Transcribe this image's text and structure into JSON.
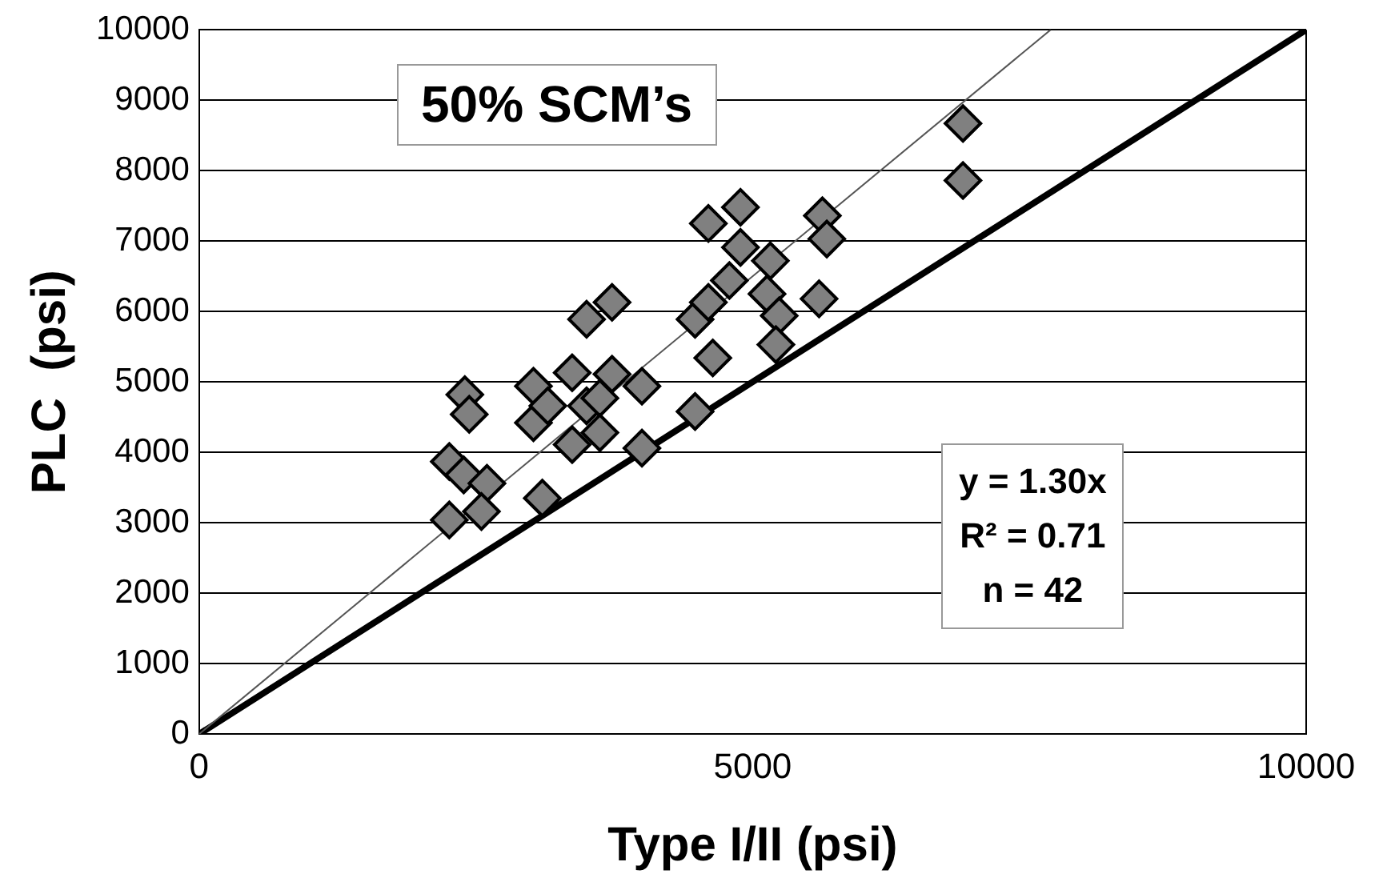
{
  "chart_data": {
    "type": "scatter",
    "xlabel": "Type I/II (psi)",
    "ylabel": "PLC  (psi)",
    "xlim": [
      0,
      10000
    ],
    "xticks": [
      0,
      5000,
      10000
    ],
    "ylim": [
      0,
      10000
    ],
    "yticks": [
      0,
      1000,
      2000,
      3000,
      4000,
      5000,
      6000,
      7000,
      8000,
      9000,
      10000
    ],
    "grid": "y",
    "legend": false,
    "annotations": [
      "50% SCM’s",
      "y = 1.30x",
      "R² = 0.71",
      "n = 42"
    ],
    "series": [
      {
        "marker": "diamond",
        "color": "#808080",
        "x": [
          2400,
          2440,
          2260,
          2390,
          2600,
          2550,
          2260,
          3020,
          3020,
          3150,
          3370,
          3730,
          4000,
          3500,
          3620,
          3370,
          3620,
          4000,
          3100,
          3500,
          3730,
          4480,
          4640,
          4480,
          4600,
          4600,
          4890,
          4890,
          5160,
          4790,
          5130,
          5240,
          5210,
          5600,
          5630,
          5670,
          6900,
          6900
        ],
        "values": [
          4820,
          4540,
          3870,
          3680,
          3560,
          3160,
          3040,
          4940,
          4420,
          4660,
          5130,
          5110,
          4940,
          4660,
          4770,
          4110,
          4280,
          4060,
          3350,
          5890,
          6130,
          4580,
          5340,
          5890,
          6130,
          7250,
          7480,
          6910,
          6720,
          6440,
          6250,
          5940,
          5530,
          6180,
          7360,
          7030,
          7860,
          8670
        ]
      },
      {
        "type": "line",
        "marker": "none",
        "color": "#555555",
        "x": [
          0,
          7692
        ],
        "values": [
          0,
          10000
        ]
      },
      {
        "type": "line",
        "marker": "none",
        "color": "#000000",
        "x": [
          0,
          10000
        ],
        "values": [
          0,
          10000
        ]
      }
    ]
  }
}
